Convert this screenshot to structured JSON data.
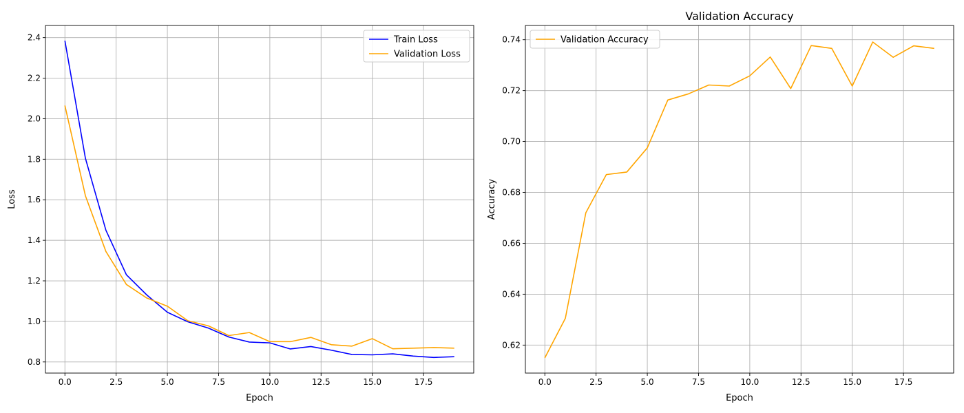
{
  "chart_data": [
    {
      "type": "line",
      "title": "",
      "xlabel": "Epoch",
      "ylabel": "Loss",
      "xlim": [
        -0.95,
        19.95
      ],
      "ylim": [
        0.745,
        2.46
      ],
      "xticks": [
        0.0,
        2.5,
        5.0,
        7.5,
        10.0,
        12.5,
        15.0,
        17.5
      ],
      "xtick_labels": [
        "0.0",
        "2.5",
        "5.0",
        "7.5",
        "10.0",
        "12.5",
        "15.0",
        "17.5"
      ],
      "yticks": [
        0.8,
        1.0,
        1.2,
        1.4,
        1.6,
        1.8,
        2.0,
        2.2,
        2.4
      ],
      "ytick_labels": [
        "0.8",
        "1.0",
        "1.2",
        "1.4",
        "1.6",
        "1.8",
        "2.0",
        "2.2",
        "2.4"
      ],
      "grid": true,
      "legend_position": "top-right",
      "x": [
        0,
        1,
        2,
        3,
        4,
        5,
        6,
        7,
        8,
        9,
        10,
        11,
        12,
        13,
        14,
        15,
        16,
        17,
        18,
        19
      ],
      "series": [
        {
          "name": "Train Loss",
          "color": "#0000ff",
          "values": [
            2.385,
            1.805,
            1.45,
            1.23,
            1.13,
            1.045,
            0.998,
            0.967,
            0.923,
            0.898,
            0.894,
            0.864,
            0.876,
            0.858,
            0.837,
            0.835,
            0.84,
            0.829,
            0.822,
            0.826
          ]
        },
        {
          "name": "Validation Loss",
          "color": "#ffa500",
          "values": [
            2.065,
            1.62,
            1.345,
            1.182,
            1.115,
            1.075,
            1.003,
            0.978,
            0.93,
            0.945,
            0.9,
            0.9,
            0.921,
            0.885,
            0.878,
            0.915,
            0.865,
            0.868,
            0.871,
            0.868
          ]
        }
      ]
    },
    {
      "type": "line",
      "title": "Validation Accuracy",
      "xlabel": "Epoch",
      "ylabel": "Accuracy",
      "xlim": [
        -0.95,
        19.95
      ],
      "ylim": [
        0.609,
        0.7456
      ],
      "xticks": [
        0.0,
        2.5,
        5.0,
        7.5,
        10.0,
        12.5,
        15.0,
        17.5
      ],
      "xtick_labels": [
        "0.0",
        "2.5",
        "5.0",
        "7.5",
        "10.0",
        "12.5",
        "15.0",
        "17.5"
      ],
      "yticks": [
        0.62,
        0.64,
        0.66,
        0.68,
        0.7,
        0.72,
        0.74
      ],
      "ytick_labels": [
        "0.62",
        "0.64",
        "0.66",
        "0.68",
        "0.70",
        "0.72",
        "0.74"
      ],
      "grid": true,
      "legend_position": "top-left",
      "x": [
        0,
        1,
        2,
        3,
        4,
        5,
        6,
        7,
        8,
        9,
        10,
        11,
        12,
        13,
        14,
        15,
        16,
        17,
        18,
        19
      ],
      "series": [
        {
          "name": "Validation Accuracy",
          "color": "#ffa500",
          "values": [
            0.615,
            0.6305,
            0.672,
            0.687,
            0.688,
            0.6975,
            0.7163,
            0.7187,
            0.7222,
            0.7218,
            0.7258,
            0.7332,
            0.7208,
            0.7377,
            0.7366,
            0.7218,
            0.7391,
            0.7331,
            0.7376,
            0.7366
          ]
        }
      ]
    }
  ]
}
